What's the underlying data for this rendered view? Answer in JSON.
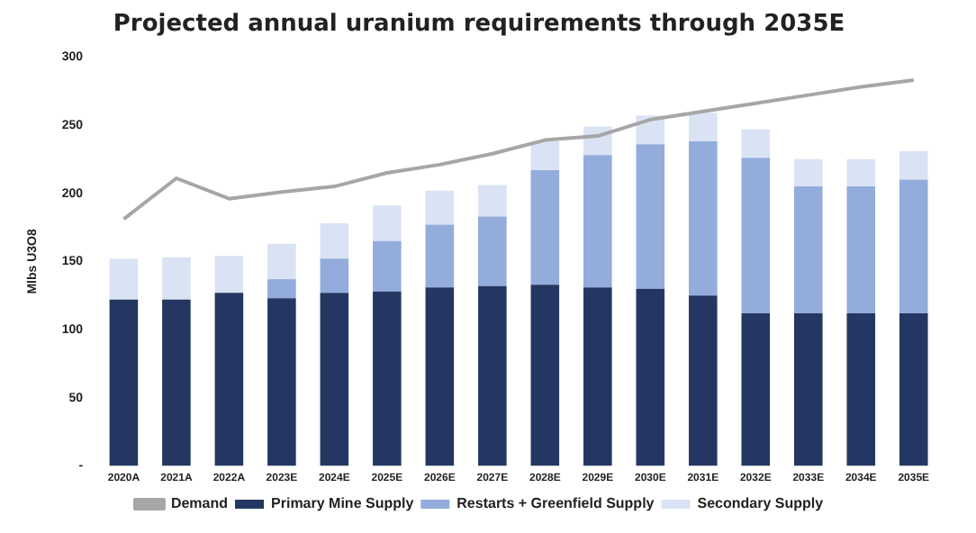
{
  "chart_data": {
    "type": "bar",
    "title": "Projected annual uranium requirements through 2035E",
    "ylabel": "Mlbs U3O8",
    "categories": [
      "2020A",
      "2021A",
      "2022A",
      "2023E",
      "2024E",
      "2025E",
      "2026E",
      "2027E",
      "2028E",
      "2029E",
      "2030E",
      "2031E",
      "2032E",
      "2033E",
      "2034E",
      "2035E"
    ],
    "stacked": true,
    "legend": "bottom",
    "grid": false,
    "ylim": [
      0,
      300
    ],
    "yticks": [
      {
        "value": 0,
        "label": "-"
      },
      50,
      100,
      150,
      200,
      250,
      300
    ],
    "series": [
      {
        "name": "Primary Mine Supply",
        "color": "#243762",
        "values": [
          122,
          122,
          127,
          123,
          127,
          128,
          131,
          132,
          133,
          131,
          130,
          125,
          112,
          112,
          112,
          112
        ]
      },
      {
        "name": "Restarts + Greenfield Supply",
        "color": "#93acdc",
        "values": [
          0,
          0,
          0,
          14,
          25,
          37,
          46,
          51,
          84,
          97,
          106,
          113,
          114,
          93,
          93,
          98
        ]
      },
      {
        "name": "Secondary Supply",
        "color": "#dae3f3",
        "values": [
          30,
          31,
          27,
          26,
          26,
          26,
          25,
          23,
          21,
          21,
          21,
          21,
          21,
          20,
          20,
          21
        ]
      },
      {
        "name": "Demand",
        "type": "line",
        "color": "#a6a6a6",
        "values": [
          181,
          211,
          196,
          201,
          205,
          215,
          221,
          229,
          239,
          242,
          254,
          260,
          266,
          272,
          278,
          283
        ]
      }
    ]
  }
}
